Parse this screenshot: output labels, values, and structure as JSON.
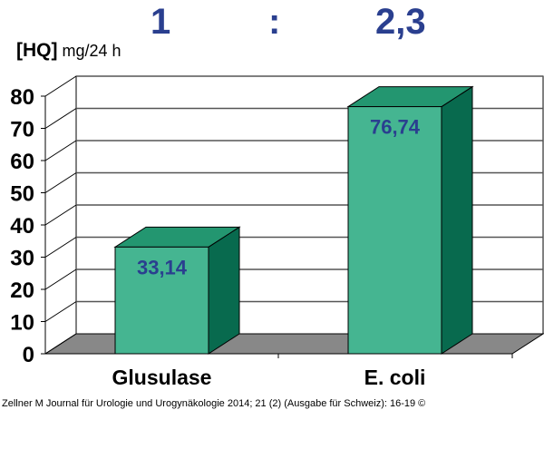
{
  "header": {
    "ratio_left": "1",
    "ratio_sep": ":",
    "ratio_right": "2,3",
    "unit_bold": "[HQ]",
    "unit_text": "mg/24 h"
  },
  "footer": {
    "citation": "Zellner M Journal für Urologie und Urogynäkologie 2014; 21 (2) (Ausgabe für Schweiz): 16-19 ©"
  },
  "colors": {
    "bar_front": "#45b591",
    "bar_top": "#239670",
    "bar_side": "#086a4e",
    "floor": "#888888",
    "value_label": "#2a3f8f"
  },
  "chart_data": {
    "type": "bar",
    "title": "1 : 2,3",
    "xlabel": "",
    "ylabel": "[HQ] mg/24 h",
    "categories": [
      "Glusulase",
      "E. coli"
    ],
    "values": [
      33.14,
      76.74
    ],
    "value_labels": [
      "33,14",
      "76,74"
    ],
    "ylim": [
      0,
      80
    ],
    "yticks": [
      0,
      10,
      20,
      30,
      40,
      50,
      60,
      70,
      80
    ],
    "grid": true,
    "style": "3d",
    "legend": "none"
  }
}
